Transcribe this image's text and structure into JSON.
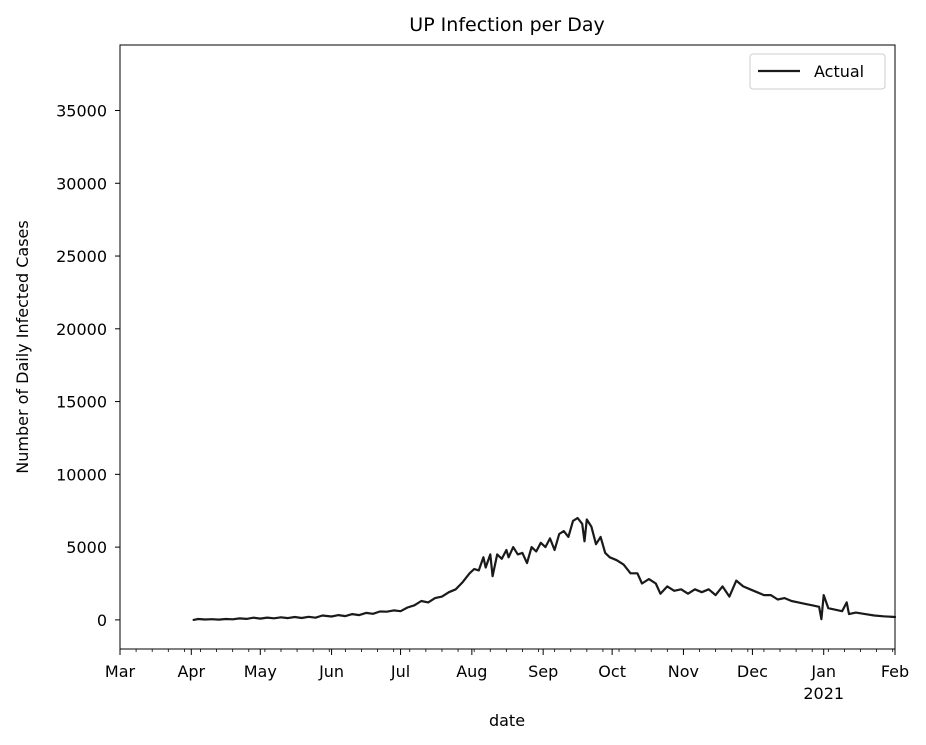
{
  "chart_data": {
    "type": "line",
    "title": "UP Infection per Day",
    "xlabel": "date",
    "ylabel": "Number of Daily Infected Cases",
    "xlim": [
      "2020-03-01",
      "2021-02-01"
    ],
    "ylim": [
      -2000,
      39500
    ],
    "grid": false,
    "legend_position": "top-right",
    "x_ticks": [
      {
        "date": "2020-03-01",
        "label": "Mar",
        "sub": ""
      },
      {
        "date": "2020-04-01",
        "label": "Apr",
        "sub": ""
      },
      {
        "date": "2020-05-01",
        "label": "May",
        "sub": ""
      },
      {
        "date": "2020-06-01",
        "label": "Jun",
        "sub": ""
      },
      {
        "date": "2020-07-01",
        "label": "Jul",
        "sub": ""
      },
      {
        "date": "2020-08-01",
        "label": "Aug",
        "sub": ""
      },
      {
        "date": "2020-09-01",
        "label": "Sep",
        "sub": ""
      },
      {
        "date": "2020-10-01",
        "label": "Oct",
        "sub": ""
      },
      {
        "date": "2020-11-01",
        "label": "Nov",
        "sub": ""
      },
      {
        "date": "2020-12-01",
        "label": "Dec",
        "sub": ""
      },
      {
        "date": "2021-01-01",
        "label": "Jan",
        "sub": "2021"
      },
      {
        "date": "2021-02-01",
        "label": "Feb",
        "sub": ""
      }
    ],
    "y_ticks": [
      0,
      5000,
      10000,
      15000,
      20000,
      25000,
      30000,
      35000
    ],
    "y_tick_labels": [
      "0",
      "5000",
      "10000",
      "15000",
      "20000",
      "25000",
      "30000",
      "35000"
    ],
    "series": [
      {
        "name": "Actual",
        "color": "#1a1a1a",
        "points": [
          [
            "2020-04-02",
            0
          ],
          [
            "2020-04-04",
            60
          ],
          [
            "2020-04-07",
            30
          ],
          [
            "2020-04-10",
            50
          ],
          [
            "2020-04-13",
            20
          ],
          [
            "2020-04-16",
            60
          ],
          [
            "2020-04-19",
            40
          ],
          [
            "2020-04-22",
            100
          ],
          [
            "2020-04-25",
            70
          ],
          [
            "2020-04-28",
            150
          ],
          [
            "2020-05-01",
            90
          ],
          [
            "2020-05-04",
            160
          ],
          [
            "2020-05-07",
            110
          ],
          [
            "2020-05-10",
            180
          ],
          [
            "2020-05-13",
            120
          ],
          [
            "2020-05-16",
            200
          ],
          [
            "2020-05-19",
            130
          ],
          [
            "2020-05-22",
            210
          ],
          [
            "2020-05-25",
            150
          ],
          [
            "2020-05-28",
            300
          ],
          [
            "2020-06-01",
            230
          ],
          [
            "2020-06-04",
            330
          ],
          [
            "2020-06-07",
            260
          ],
          [
            "2020-06-10",
            400
          ],
          [
            "2020-06-13",
            330
          ],
          [
            "2020-06-16",
            480
          ],
          [
            "2020-06-19",
            420
          ],
          [
            "2020-06-22",
            580
          ],
          [
            "2020-06-25",
            560
          ],
          [
            "2020-06-28",
            650
          ],
          [
            "2020-07-01",
            600
          ],
          [
            "2020-07-04",
            850
          ],
          [
            "2020-07-07",
            1000
          ],
          [
            "2020-07-10",
            1300
          ],
          [
            "2020-07-13",
            1200
          ],
          [
            "2020-07-16",
            1500
          ],
          [
            "2020-07-19",
            1600
          ],
          [
            "2020-07-22",
            1900
          ],
          [
            "2020-07-25",
            2100
          ],
          [
            "2020-07-28",
            2600
          ],
          [
            "2020-07-31",
            3200
          ],
          [
            "2020-08-02",
            3500
          ],
          [
            "2020-08-04",
            3400
          ],
          [
            "2020-08-06",
            4300
          ],
          [
            "2020-08-07",
            3600
          ],
          [
            "2020-08-09",
            4500
          ],
          [
            "2020-08-10",
            3000
          ],
          [
            "2020-08-12",
            4500
          ],
          [
            "2020-08-14",
            4200
          ],
          [
            "2020-08-16",
            4800
          ],
          [
            "2020-08-17",
            4300
          ],
          [
            "2020-08-19",
            5000
          ],
          [
            "2020-08-21",
            4500
          ],
          [
            "2020-08-23",
            4600
          ],
          [
            "2020-08-25",
            3900
          ],
          [
            "2020-08-27",
            5000
          ],
          [
            "2020-08-29",
            4700
          ],
          [
            "2020-08-31",
            5300
          ],
          [
            "2020-09-02",
            5000
          ],
          [
            "2020-09-04",
            5600
          ],
          [
            "2020-09-06",
            4800
          ],
          [
            "2020-09-08",
            5900
          ],
          [
            "2020-09-10",
            6100
          ],
          [
            "2020-09-12",
            5700
          ],
          [
            "2020-09-14",
            6800
          ],
          [
            "2020-09-16",
            7000
          ],
          [
            "2020-09-18",
            6600
          ],
          [
            "2020-09-19",
            5400
          ],
          [
            "2020-09-20",
            6900
          ],
          [
            "2020-09-22",
            6400
          ],
          [
            "2020-09-24",
            5200
          ],
          [
            "2020-09-26",
            5700
          ],
          [
            "2020-09-28",
            4600
          ],
          [
            "2020-09-30",
            4300
          ],
          [
            "2020-10-03",
            4100
          ],
          [
            "2020-10-06",
            3800
          ],
          [
            "2020-10-09",
            3200
          ],
          [
            "2020-10-12",
            3200
          ],
          [
            "2020-10-14",
            2500
          ],
          [
            "2020-10-17",
            2800
          ],
          [
            "2020-10-20",
            2500
          ],
          [
            "2020-10-22",
            1800
          ],
          [
            "2020-10-25",
            2300
          ],
          [
            "2020-10-28",
            2000
          ],
          [
            "2020-10-31",
            2100
          ],
          [
            "2020-11-03",
            1800
          ],
          [
            "2020-11-06",
            2100
          ],
          [
            "2020-11-09",
            1900
          ],
          [
            "2020-11-12",
            2100
          ],
          [
            "2020-11-15",
            1700
          ],
          [
            "2020-11-18",
            2300
          ],
          [
            "2020-11-21",
            1600
          ],
          [
            "2020-11-24",
            2700
          ],
          [
            "2020-11-27",
            2300
          ],
          [
            "2020-11-30",
            2100
          ],
          [
            "2020-12-03",
            1900
          ],
          [
            "2020-12-06",
            1700
          ],
          [
            "2020-12-09",
            1700
          ],
          [
            "2020-12-12",
            1400
          ],
          [
            "2020-12-15",
            1500
          ],
          [
            "2020-12-18",
            1300
          ],
          [
            "2020-12-21",
            1200
          ],
          [
            "2020-12-24",
            1100
          ],
          [
            "2020-12-27",
            1000
          ],
          [
            "2020-12-30",
            900
          ],
          [
            "2020-12-31",
            50
          ],
          [
            "2021-01-01",
            1700
          ],
          [
            "2021-01-03",
            800
          ],
          [
            "2021-01-06",
            700
          ],
          [
            "2021-01-09",
            600
          ],
          [
            "2021-01-11",
            1200
          ],
          [
            "2021-01-12",
            400
          ],
          [
            "2021-01-15",
            500
          ],
          [
            "2021-01-19",
            400
          ],
          [
            "2021-01-23",
            300
          ],
          [
            "2021-01-27",
            250
          ],
          [
            "2021-02-01",
            200
          ]
        ]
      }
    ]
  }
}
